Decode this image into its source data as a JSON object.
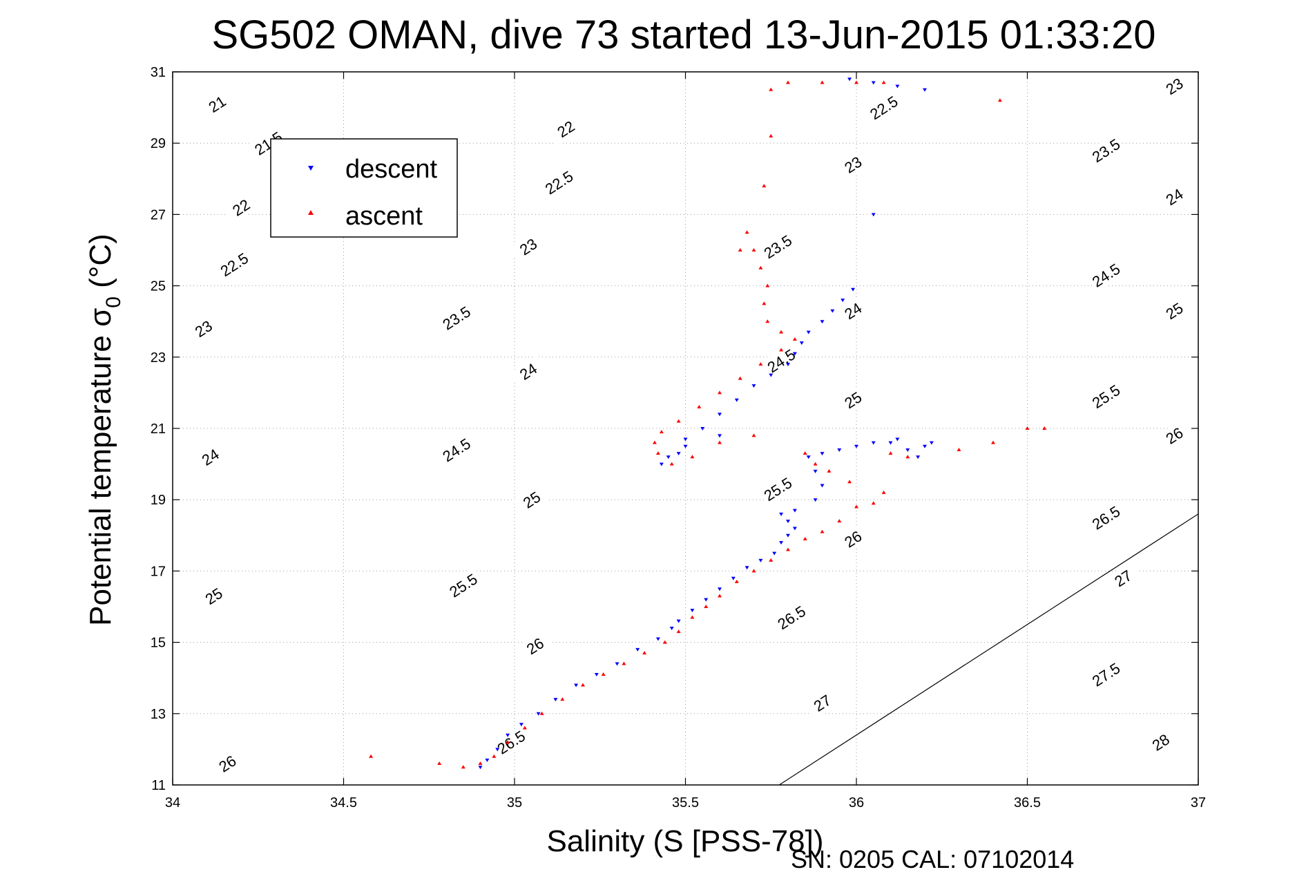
{
  "chart_data": {
    "type": "scatter",
    "title": "SG502 OMAN, dive 73 started 13-Jun-2015 01:33:20",
    "xlabel": "Salinity (S [PSS-78])",
    "ylabel": "Potential temperature σ",
    "ylabel_sub": "0",
    "ylabel_unit": " (°C)",
    "footer": "SN: 0205  CAL: 07102014",
    "xlim": [
      34,
      37
    ],
    "ylim": [
      11,
      31
    ],
    "xticks": [
      34,
      34.5,
      35,
      35.5,
      36,
      36.5,
      37
    ],
    "yticks": [
      11,
      13,
      15,
      17,
      19,
      21,
      23,
      25,
      27,
      29,
      31
    ],
    "grid": true,
    "legend_position": "top-left",
    "contours": {
      "levels": [
        21,
        21.5,
        22,
        22.5,
        23,
        23.5,
        24,
        24.5,
        25,
        25.5,
        26,
        26.5,
        27,
        27.5,
        28
      ],
      "labels": [
        {
          "text": "21",
          "s": 34.13,
          "t": 30.1
        },
        {
          "text": "21.5",
          "s": 34.28,
          "t": 29.0
        },
        {
          "text": "22",
          "s": 34.2,
          "t": 27.2
        },
        {
          "text": "22.5",
          "s": 34.18,
          "t": 25.6
        },
        {
          "text": "23",
          "s": 34.09,
          "t": 23.8
        },
        {
          "text": "24",
          "s": 34.11,
          "t": 20.2
        },
        {
          "text": "25",
          "s": 34.12,
          "t": 16.3
        },
        {
          "text": "26",
          "s": 34.16,
          "t": 11.6
        },
        {
          "text": "22",
          "s": 35.15,
          "t": 29.4
        },
        {
          "text": "22.5",
          "s": 35.13,
          "t": 27.9
        },
        {
          "text": "23",
          "s": 35.04,
          "t": 26.1
        },
        {
          "text": "23.5",
          "s": 34.83,
          "t": 24.1
        },
        {
          "text": "24",
          "s": 35.04,
          "t": 22.6
        },
        {
          "text": "24.5",
          "s": 34.83,
          "t": 20.4
        },
        {
          "text": "25",
          "s": 35.05,
          "t": 19.0
        },
        {
          "text": "25.5",
          "s": 34.85,
          "t": 16.6
        },
        {
          "text": "26",
          "s": 35.06,
          "t": 14.9
        },
        {
          "text": "26.5",
          "s": 34.99,
          "t": 12.2
        },
        {
          "text": "22.5",
          "s": 36.08,
          "t": 30.0
        },
        {
          "text": "23",
          "s": 35.99,
          "t": 28.4
        },
        {
          "text": "23.5",
          "s": 35.77,
          "t": 26.1
        },
        {
          "text": "24",
          "s": 35.99,
          "t": 24.3
        },
        {
          "text": "24.5",
          "s": 35.78,
          "t": 22.9
        },
        {
          "text": "25",
          "s": 35.99,
          "t": 21.8
        },
        {
          "text": "25.5",
          "s": 35.77,
          "t": 19.3
        },
        {
          "text": "26",
          "s": 35.99,
          "t": 17.9
        },
        {
          "text": "26.5",
          "s": 35.81,
          "t": 15.7
        },
        {
          "text": "27",
          "s": 35.9,
          "t": 13.3
        },
        {
          "text": "23",
          "s": 36.93,
          "t": 30.6
        },
        {
          "text": "23.5",
          "s": 36.73,
          "t": 28.8
        },
        {
          "text": "24",
          "s": 36.93,
          "t": 27.5
        },
        {
          "text": "24.5",
          "s": 36.73,
          "t": 25.3
        },
        {
          "text": "25",
          "s": 36.93,
          "t": 24.3
        },
        {
          "text": "25.5",
          "s": 36.73,
          "t": 21.9
        },
        {
          "text": "26",
          "s": 36.93,
          "t": 20.8
        },
        {
          "text": "26.5",
          "s": 36.73,
          "t": 18.5
        },
        {
          "text": "27",
          "s": 36.78,
          "t": 16.8
        },
        {
          "text": "27.5",
          "s": 36.73,
          "t": 14.1
        },
        {
          "text": "28",
          "s": 36.89,
          "t": 12.2
        }
      ]
    },
    "series": [
      {
        "name": "descent",
        "color": "#0000ff",
        "marker": "triangle-down",
        "points": [
          [
            34.9,
            11.5
          ],
          [
            34.92,
            11.7
          ],
          [
            34.95,
            12.0
          ],
          [
            34.98,
            12.4
          ],
          [
            35.02,
            12.7
          ],
          [
            35.07,
            13.0
          ],
          [
            35.12,
            13.4
          ],
          [
            35.18,
            13.8
          ],
          [
            35.24,
            14.1
          ],
          [
            35.3,
            14.4
          ],
          [
            35.36,
            14.8
          ],
          [
            35.42,
            15.1
          ],
          [
            35.46,
            15.4
          ],
          [
            35.48,
            15.6
          ],
          [
            35.52,
            15.9
          ],
          [
            35.56,
            16.2
          ],
          [
            35.6,
            16.5
          ],
          [
            35.64,
            16.8
          ],
          [
            35.68,
            17.1
          ],
          [
            35.72,
            17.3
          ],
          [
            35.76,
            17.5
          ],
          [
            35.78,
            17.8
          ],
          [
            35.8,
            18.0
          ],
          [
            35.82,
            18.2
          ],
          [
            35.8,
            18.4
          ],
          [
            35.78,
            18.6
          ],
          [
            35.82,
            18.7
          ],
          [
            35.88,
            19.0
          ],
          [
            35.9,
            19.4
          ],
          [
            35.88,
            19.8
          ],
          [
            35.86,
            20.2
          ],
          [
            35.9,
            20.3
          ],
          [
            35.95,
            20.4
          ],
          [
            36.0,
            20.5
          ],
          [
            36.05,
            20.6
          ],
          [
            36.1,
            20.6
          ],
          [
            36.15,
            20.4
          ],
          [
            36.18,
            20.2
          ],
          [
            36.2,
            20.5
          ],
          [
            36.22,
            20.6
          ],
          [
            36.12,
            20.7
          ],
          [
            35.6,
            20.8
          ],
          [
            35.5,
            20.5
          ],
          [
            35.45,
            20.2
          ],
          [
            35.43,
            20.0
          ],
          [
            35.48,
            20.3
          ],
          [
            35.5,
            20.7
          ],
          [
            35.55,
            21.0
          ],
          [
            35.6,
            21.4
          ],
          [
            35.65,
            21.8
          ],
          [
            35.7,
            22.2
          ],
          [
            35.75,
            22.5
          ],
          [
            35.8,
            22.8
          ],
          [
            35.82,
            23.1
          ],
          [
            35.84,
            23.4
          ],
          [
            35.86,
            23.7
          ],
          [
            35.9,
            24.0
          ],
          [
            35.93,
            24.3
          ],
          [
            35.96,
            24.6
          ],
          [
            35.99,
            24.9
          ],
          [
            36.05,
            27.0
          ],
          [
            35.98,
            30.8
          ],
          [
            36.05,
            30.7
          ],
          [
            36.12,
            30.6
          ],
          [
            36.2,
            30.5
          ]
        ]
      },
      {
        "name": "ascent",
        "color": "#ff0000",
        "marker": "triangle-up",
        "points": [
          [
            34.58,
            11.8
          ],
          [
            34.78,
            11.6
          ],
          [
            34.85,
            11.5
          ],
          [
            34.9,
            11.6
          ],
          [
            34.94,
            11.8
          ],
          [
            34.98,
            12.2
          ],
          [
            35.03,
            12.6
          ],
          [
            35.08,
            13.0
          ],
          [
            35.14,
            13.4
          ],
          [
            35.2,
            13.8
          ],
          [
            35.26,
            14.1
          ],
          [
            35.32,
            14.4
          ],
          [
            35.38,
            14.7
          ],
          [
            35.44,
            15.0
          ],
          [
            35.48,
            15.3
          ],
          [
            35.52,
            15.7
          ],
          [
            35.56,
            16.0
          ],
          [
            35.6,
            16.3
          ],
          [
            35.65,
            16.7
          ],
          [
            35.7,
            17.0
          ],
          [
            35.75,
            17.3
          ],
          [
            35.8,
            17.6
          ],
          [
            35.85,
            17.9
          ],
          [
            35.9,
            18.1
          ],
          [
            35.95,
            18.4
          ],
          [
            36.0,
            18.8
          ],
          [
            36.05,
            18.9
          ],
          [
            36.08,
            19.2
          ],
          [
            35.98,
            19.5
          ],
          [
            35.92,
            19.8
          ],
          [
            35.88,
            20.0
          ],
          [
            35.85,
            20.3
          ],
          [
            35.7,
            20.8
          ],
          [
            35.6,
            20.6
          ],
          [
            35.52,
            20.2
          ],
          [
            35.46,
            20.0
          ],
          [
            35.42,
            20.3
          ],
          [
            35.41,
            20.6
          ],
          [
            35.43,
            20.9
          ],
          [
            35.48,
            21.2
          ],
          [
            35.54,
            21.6
          ],
          [
            35.6,
            22.0
          ],
          [
            35.66,
            22.4
          ],
          [
            35.72,
            22.8
          ],
          [
            35.78,
            23.2
          ],
          [
            35.82,
            23.5
          ],
          [
            35.78,
            23.7
          ],
          [
            35.74,
            24.0
          ],
          [
            35.73,
            24.5
          ],
          [
            35.74,
            25.0
          ],
          [
            35.72,
            25.5
          ],
          [
            35.7,
            26.0
          ],
          [
            35.68,
            26.5
          ],
          [
            35.66,
            26.0
          ],
          [
            35.73,
            27.8
          ],
          [
            35.75,
            29.2
          ],
          [
            35.75,
            30.5
          ],
          [
            35.8,
            30.7
          ],
          [
            35.9,
            30.7
          ],
          [
            36.0,
            30.7
          ],
          [
            36.08,
            30.7
          ],
          [
            36.1,
            20.3
          ],
          [
            36.15,
            20.2
          ],
          [
            36.3,
            20.4
          ],
          [
            36.4,
            20.6
          ],
          [
            36.5,
            21.0
          ],
          [
            36.55,
            21.0
          ],
          [
            36.42,
            30.2
          ]
        ]
      }
    ]
  }
}
